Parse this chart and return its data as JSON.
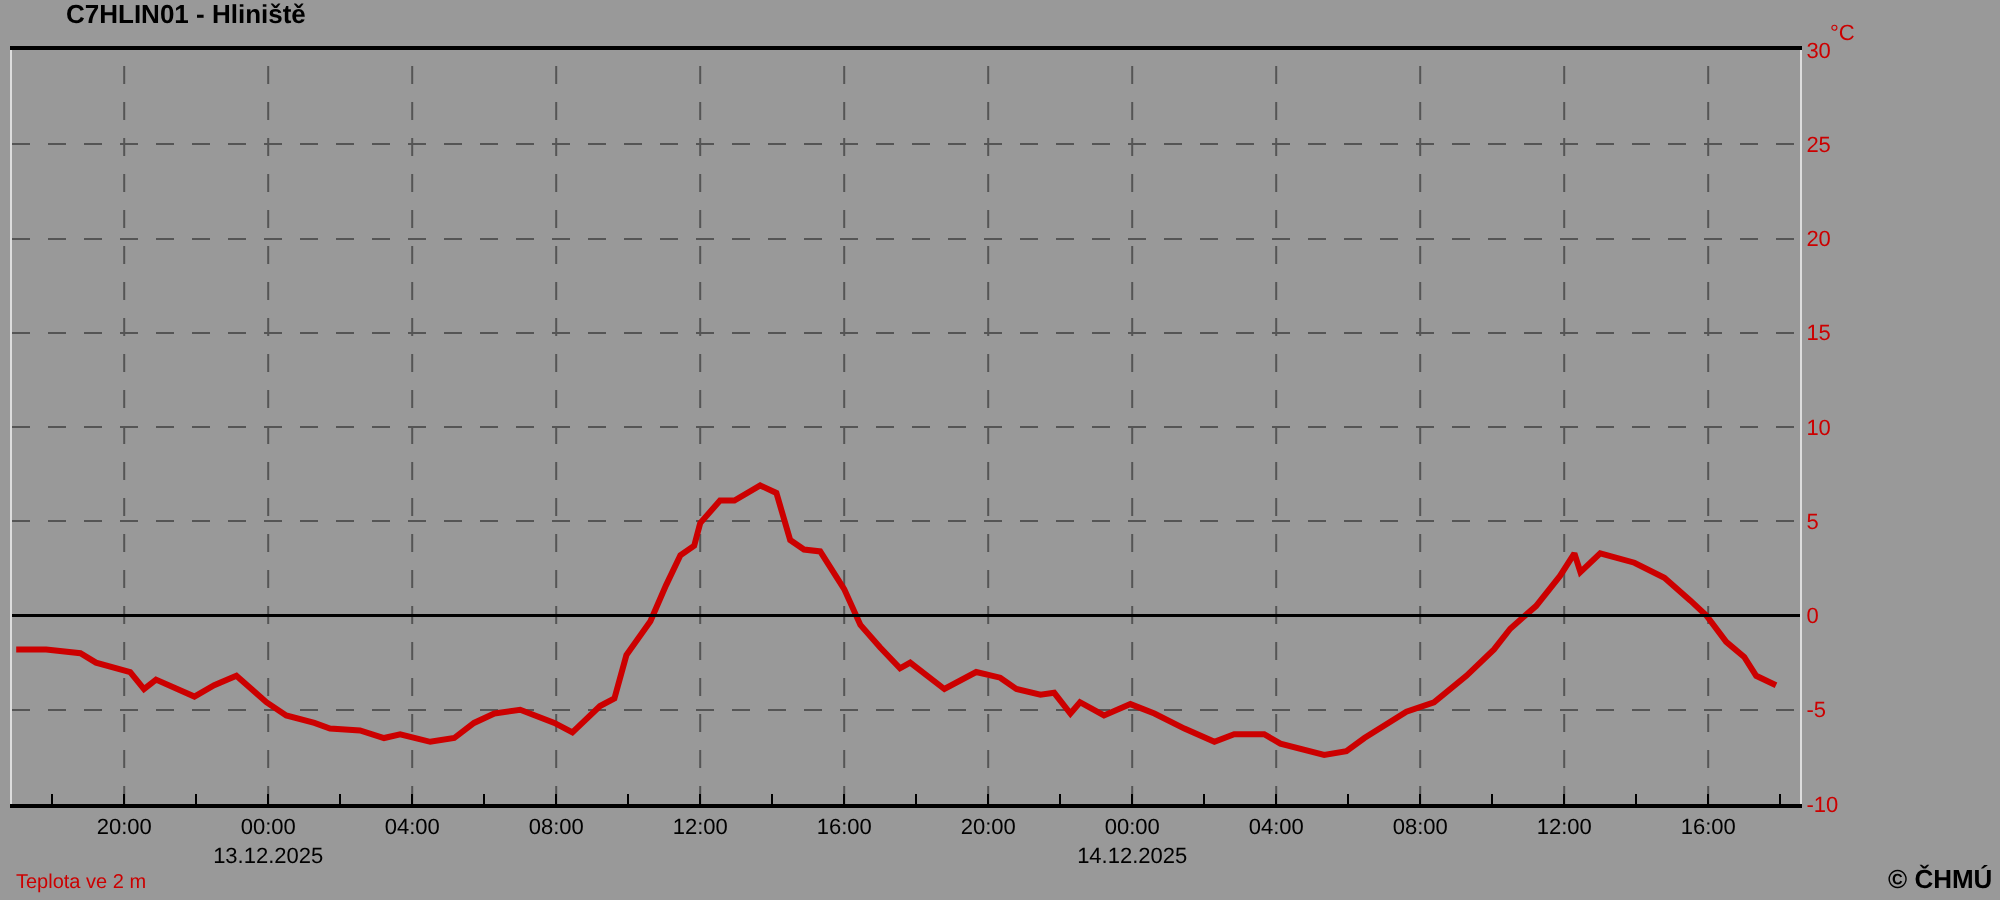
{
  "chart_data": {
    "type": "line",
    "title": "C7HLIN01 - Hliniště",
    "ylabel": "°C",
    "annotations": [
      "Teplota ve 2 m",
      "© ČHMÚ"
    ],
    "x": [
      "2025-12-12T17:00",
      "2025-12-12T17:50",
      "2025-12-12T18:47",
      "2025-12-12T19:13",
      "2025-12-12T20:10",
      "2025-12-12T20:33",
      "2025-12-12T20:53",
      "2025-12-12T21:57",
      "2025-12-12T22:30",
      "2025-12-12T23:07",
      "2025-12-12T23:57",
      "2025-12-13T00:30",
      "2025-12-13T01:17",
      "2025-12-13T01:43",
      "2025-12-13T02:33",
      "2025-12-13T03:13",
      "2025-12-13T03:40",
      "2025-12-13T04:30",
      "2025-12-13T05:10",
      "2025-12-13T05:43",
      "2025-12-13T06:17",
      "2025-12-13T07:00",
      "2025-12-13T07:57",
      "2025-12-13T08:27",
      "2025-12-13T09:13",
      "2025-12-13T09:37",
      "2025-12-13T09:57",
      "2025-12-13T10:37",
      "2025-12-13T11:03",
      "2025-12-13T11:27",
      "2025-12-13T11:50",
      "2025-12-13T12:00",
      "2025-12-13T12:33",
      "2025-12-13T12:57",
      "2025-12-13T13:40",
      "2025-12-13T14:07",
      "2025-12-13T14:30",
      "2025-12-13T14:53",
      "2025-12-13T15:20",
      "2025-12-13T16:00",
      "2025-12-13T16:27",
      "2025-12-13T17:00",
      "2025-12-13T17:33",
      "2025-12-13T17:50",
      "2025-12-13T18:47",
      "2025-12-13T19:40",
      "2025-12-13T20:20",
      "2025-12-13T20:47",
      "2025-12-13T21:27",
      "2025-12-13T21:50",
      "2025-12-13T22:17",
      "2025-12-13T22:33",
      "2025-12-13T23:13",
      "2025-12-13T23:57",
      "2025-12-14T00:37",
      "2025-12-14T01:27",
      "2025-12-14T02:17",
      "2025-12-14T02:50",
      "2025-12-14T03:40",
      "2025-12-14T04:07",
      "2025-12-14T05:20",
      "2025-12-14T05:57",
      "2025-12-14T06:27",
      "2025-12-14T07:37",
      "2025-12-14T08:23",
      "2025-12-14T09:17",
      "2025-12-14T10:03",
      "2025-12-14T10:30",
      "2025-12-14T11:13",
      "2025-12-14T11:53",
      "2025-12-14T12:17",
      "2025-12-14T12:27",
      "2025-12-14T13:00",
      "2025-12-14T13:57",
      "2025-12-14T14:47",
      "2025-12-14T15:30",
      "2025-12-14T15:57",
      "2025-12-14T16:30",
      "2025-12-14T17:00",
      "2025-12-14T17:20",
      "2025-12-14T17:53"
    ],
    "series": [
      {
        "color": "#cc0000",
        "values": [
          -1.8,
          -1.8,
          -2.0,
          -2.5,
          -3.0,
          -3.9,
          -3.4,
          -4.3,
          -3.7,
          -3.2,
          -4.6,
          -5.3,
          -5.7,
          -6.0,
          -6.1,
          -6.5,
          -6.3,
          -6.7,
          -6.5,
          -5.7,
          -5.2,
          -5.0,
          -5.7,
          -6.2,
          -4.8,
          -4.4,
          -2.1,
          -0.3,
          1.6,
          3.2,
          3.7,
          4.9,
          6.1,
          6.1,
          6.9,
          6.5,
          4.0,
          3.5,
          3.4,
          1.4,
          -0.5,
          -1.7,
          -2.8,
          -2.5,
          -3.9,
          -3.0,
          -3.3,
          -3.9,
          -4.2,
          -4.1,
          -5.2,
          -4.6,
          -5.3,
          -4.7,
          -5.2,
          -6.0,
          -6.7,
          -6.3,
          -6.3,
          -6.8,
          -7.4,
          -7.2,
          -6.5,
          -5.1,
          -4.6,
          -3.2,
          -1.8,
          -0.7,
          0.5,
          2.1,
          3.3,
          2.3,
          3.3,
          2.8,
          2.0,
          0.8,
          0.0,
          -1.4,
          -2.2,
          -3.2,
          -3.7
        ]
      }
    ],
    "xlim": [
      "2025-12-12T16:53",
      "2025-12-14T18:33"
    ],
    "xticks": [
      {
        "value": "2025-12-12T18:00",
        "label": null
      },
      {
        "value": "2025-12-12T20:00",
        "label": "20:00"
      },
      {
        "value": "2025-12-12T22:00",
        "label": null
      },
      {
        "value": "2025-12-13T00:00",
        "label": "00:00\n13.12.2025"
      },
      {
        "value": "2025-12-13T02:00",
        "label": null
      },
      {
        "value": "2025-12-13T04:00",
        "label": "04:00"
      },
      {
        "value": "2025-12-13T06:00",
        "label": null
      },
      {
        "value": "2025-12-13T08:00",
        "label": "08:00"
      },
      {
        "value": "2025-12-13T10:00",
        "label": null
      },
      {
        "value": "2025-12-13T12:00",
        "label": "12:00"
      },
      {
        "value": "2025-12-13T14:00",
        "label": null
      },
      {
        "value": "2025-12-13T16:00",
        "label": "16:00"
      },
      {
        "value": "2025-12-13T18:00",
        "label": null
      },
      {
        "value": "2025-12-13T20:00",
        "label": "20:00"
      },
      {
        "value": "2025-12-13T22:00",
        "label": null
      },
      {
        "value": "2025-12-14T00:00",
        "label": "00:00\n14.12.2025"
      },
      {
        "value": "2025-12-14T02:00",
        "label": null
      },
      {
        "value": "2025-12-14T04:00",
        "label": "04:00"
      },
      {
        "value": "2025-12-14T06:00",
        "label": null
      },
      {
        "value": "2025-12-14T08:00",
        "label": "08:00"
      },
      {
        "value": "2025-12-14T10:00",
        "label": null
      },
      {
        "value": "2025-12-14T12:00",
        "label": "12:00"
      },
      {
        "value": "2025-12-14T14:00",
        "label": null
      },
      {
        "value": "2025-12-14T16:00",
        "label": "16:00"
      },
      {
        "value": "2025-12-14T18:00",
        "label": null
      }
    ],
    "ylim": [
      -10,
      30
    ],
    "yticks": [
      -10,
      -5,
      0,
      5,
      10,
      15,
      20,
      25,
      30
    ],
    "ref_lines": [
      {
        "axis": "y",
        "value": 0,
        "color": "#000000"
      }
    ],
    "grid": true,
    "marker": "none",
    "line_style": "solid"
  }
}
